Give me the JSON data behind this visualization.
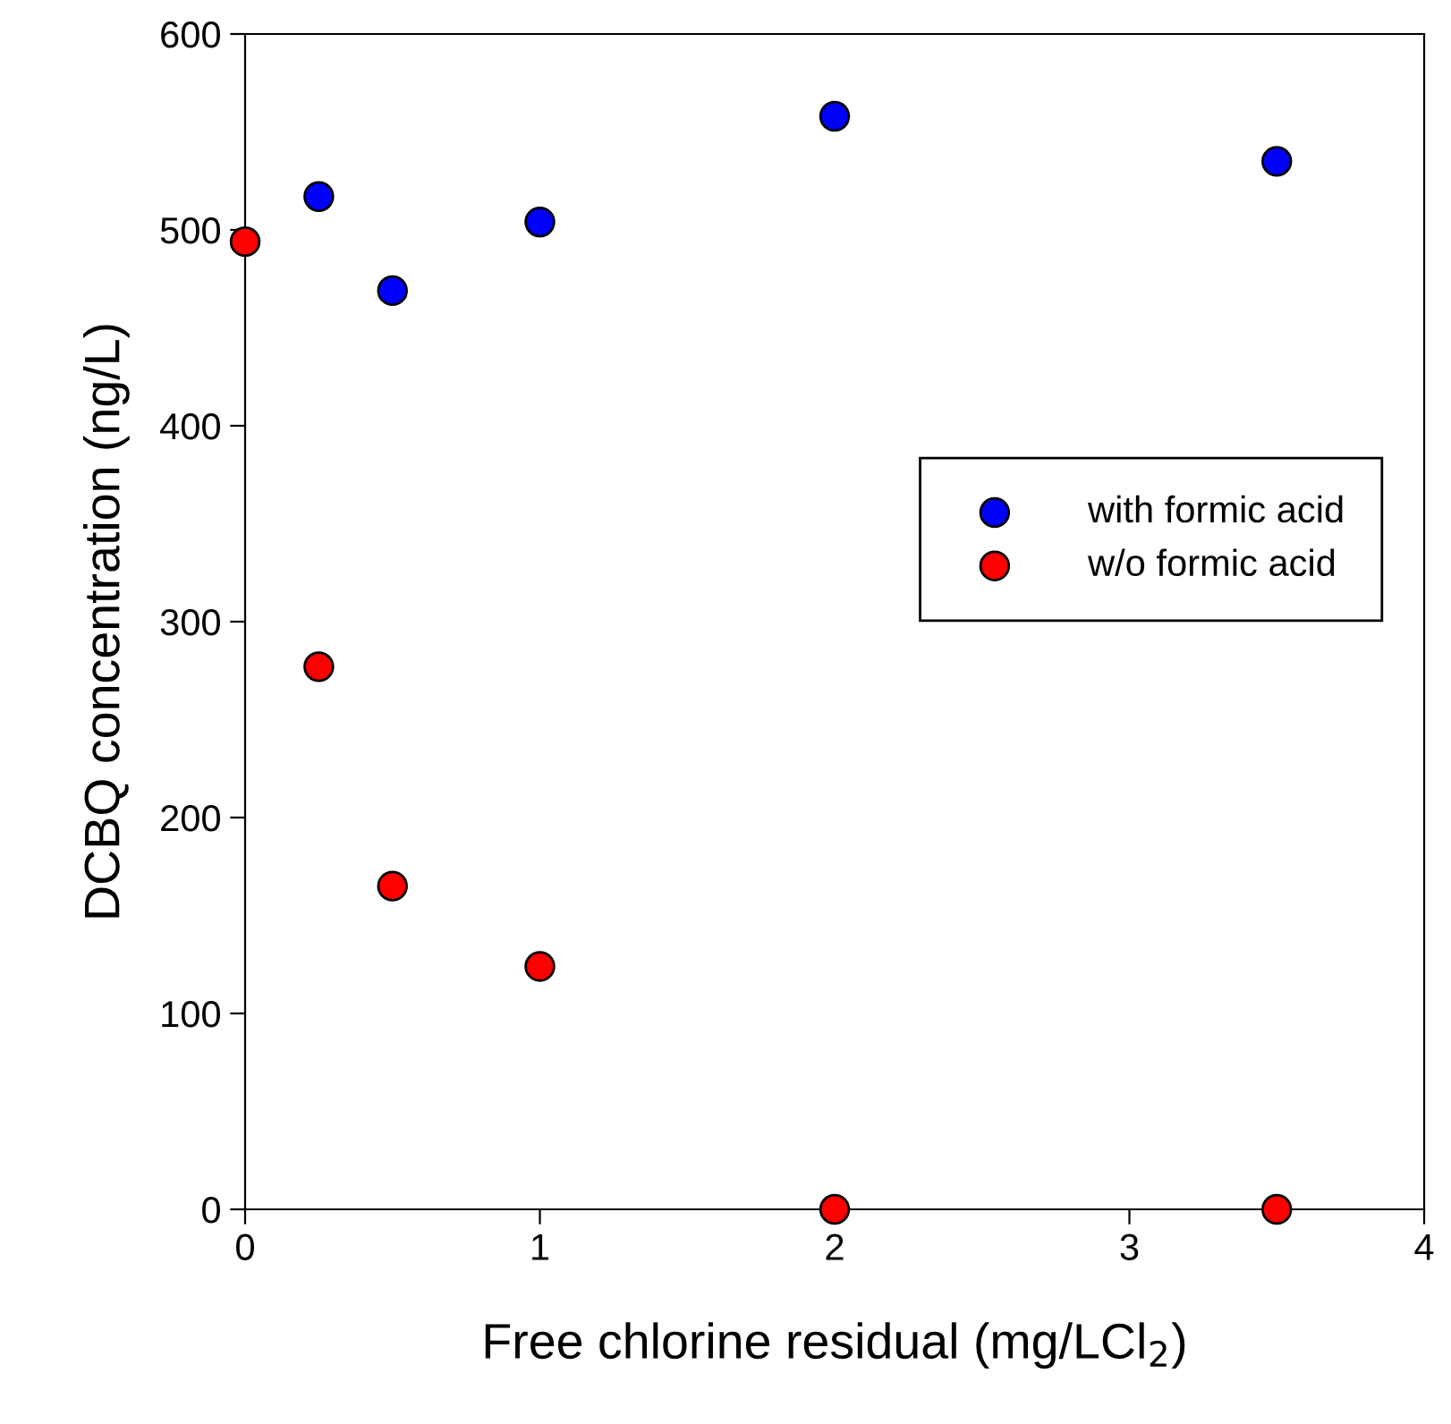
{
  "chart_data": {
    "type": "scatter",
    "xlabel": "Free chlorine residual (mg/LCl$_{2}$)",
    "ylabel": "DCBQ concentration (ng/L)",
    "series": [
      {
        "name": "with formic acid",
        "color": "#0000ff",
        "x": [
          0.25,
          0.5,
          1,
          2,
          3.5
        ],
        "values": [
          517,
          469,
          504,
          558,
          535
        ]
      },
      {
        "name": "w/o formic acid",
        "color": "#ff0000",
        "x": [
          0,
          0.25,
          0.5,
          1,
          2,
          3.5
        ],
        "values": [
          494,
          277,
          165,
          124,
          0,
          0
        ]
      }
    ],
    "xlim": [
      0,
      4
    ],
    "xticks": [
      0,
      1,
      2,
      3,
      4
    ],
    "ylim": [
      0,
      600
    ],
    "yticks": [
      0,
      100,
      200,
      300,
      400,
      500,
      600
    ],
    "marker": "circle",
    "grid": false,
    "legend": "right"
  }
}
